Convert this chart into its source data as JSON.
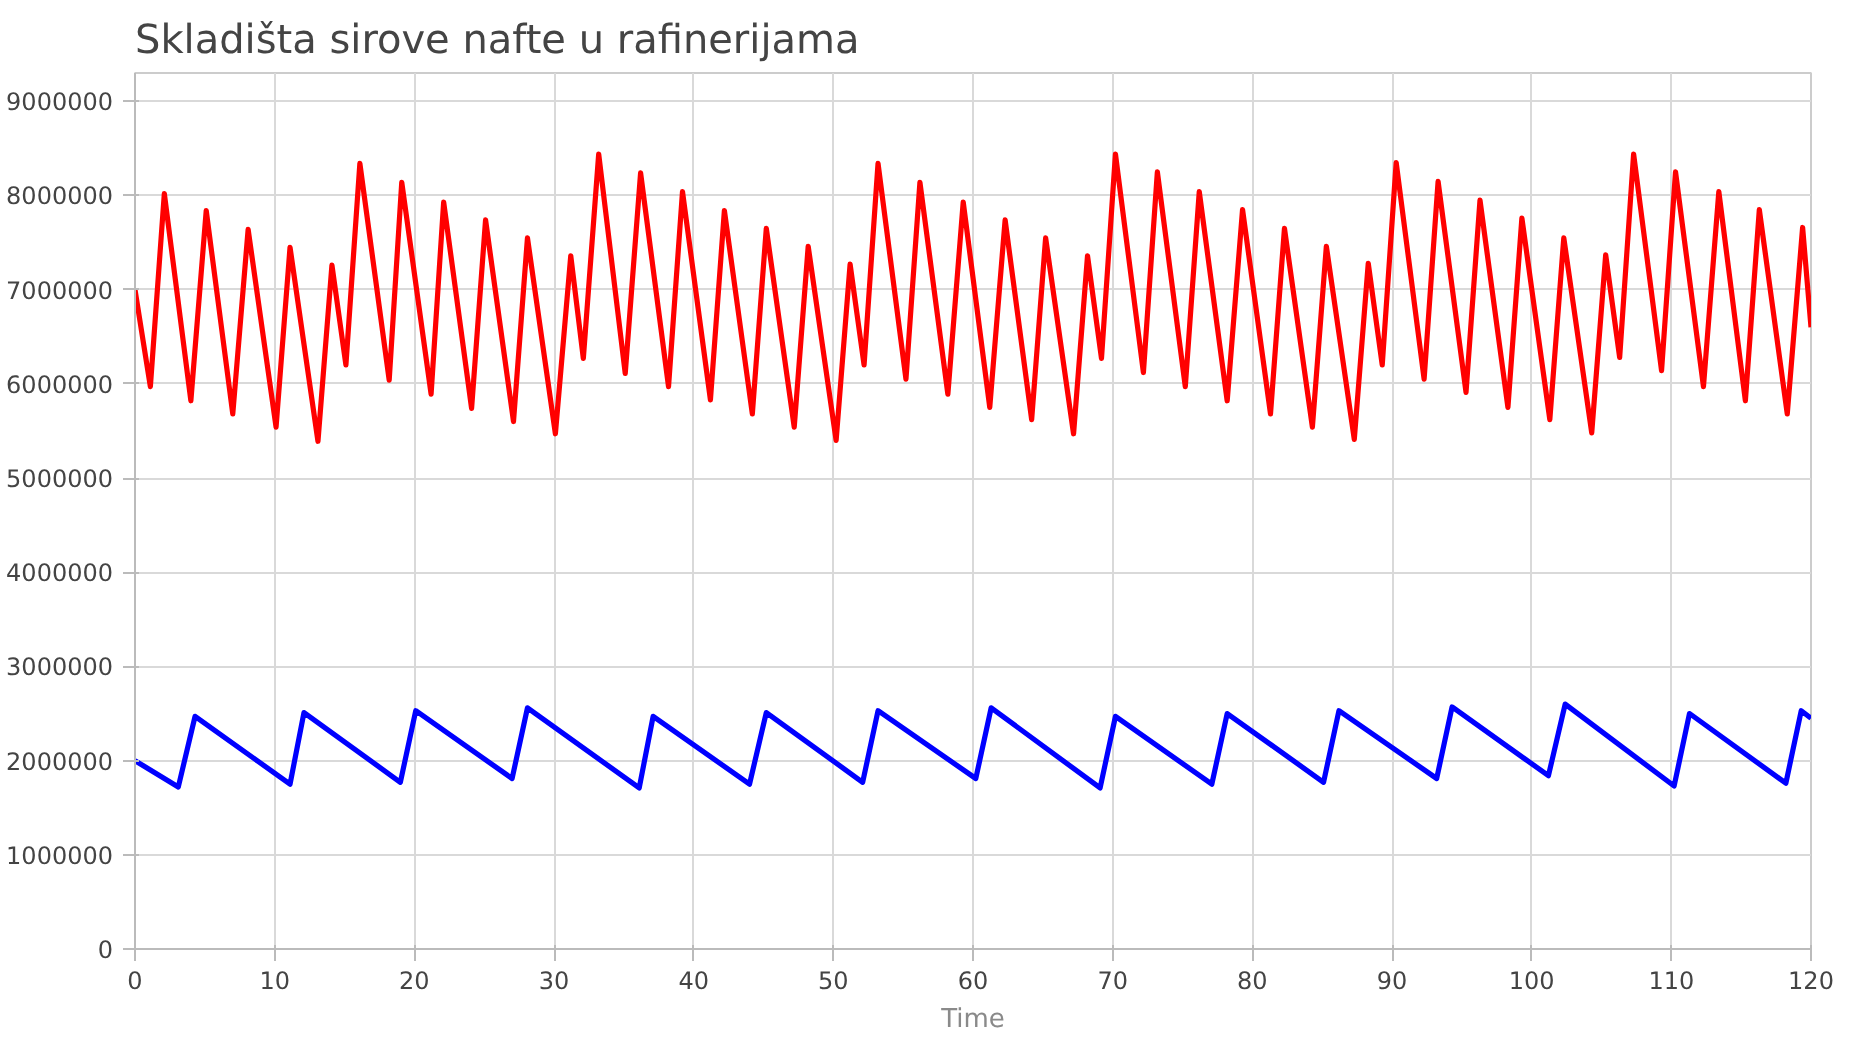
{
  "chart_data": {
    "type": "line",
    "title": "Skladišta sirove nafte u rafinerijama",
    "xlabel": "Time",
    "xlim": [
      0,
      120
    ],
    "ylim": [
      0,
      9300000
    ],
    "xticks": [
      0,
      10,
      20,
      30,
      40,
      50,
      60,
      70,
      80,
      90,
      100,
      110,
      120
    ],
    "yticks": [
      0,
      1000000,
      2000000,
      3000000,
      4000000,
      5000000,
      6000000,
      7000000,
      8000000,
      9000000
    ],
    "grid": true,
    "marker": "none",
    "line_style": "solid",
    "series": [
      {
        "color": "#ff0000",
        "x": [
          0,
          1.1,
          2.1,
          4.0,
          5.1,
          7.0,
          8.1,
          10.1,
          11.1,
          13.1,
          14.1,
          15.1,
          16.1,
          18.2,
          19.1,
          21.2,
          22.1,
          24.1,
          25.1,
          27.1,
          28.1,
          30.1,
          31.2,
          32.1,
          33.2,
          35.1,
          36.2,
          38.2,
          39.2,
          41.2,
          42.2,
          44.2,
          45.2,
          47.2,
          48.2,
          50.2,
          51.2,
          52.2,
          53.2,
          55.2,
          56.2,
          58.2,
          59.3,
          61.2,
          62.3,
          64.2,
          65.2,
          67.2,
          68.2,
          69.2,
          70.2,
          72.2,
          73.2,
          75.2,
          76.2,
          78.2,
          79.3,
          81.3,
          82.3,
          84.3,
          85.3,
          87.3,
          88.3,
          89.3,
          90.3,
          92.3,
          93.3,
          95.3,
          96.3,
          98.3,
          99.3,
          101.3,
          102.3,
          104.3,
          105.3,
          106.3,
          107.3,
          109.3,
          110.3,
          112.3,
          113.4,
          115.3,
          116.3,
          118.3,
          119.4,
          120
        ],
        "values": [
          7000000,
          5970000,
          8020000,
          5820000,
          7840000,
          5680000,
          7640000,
          5540000,
          7450000,
          5390000,
          7260000,
          6200000,
          8340000,
          6040000,
          8140000,
          5890000,
          7930000,
          5740000,
          7740000,
          5600000,
          7550000,
          5470000,
          7360000,
          6270000,
          8440000,
          6110000,
          8240000,
          5970000,
          8040000,
          5830000,
          7840000,
          5680000,
          7650000,
          5540000,
          7460000,
          5400000,
          7270000,
          6200000,
          8340000,
          6050000,
          8140000,
          5890000,
          7930000,
          5750000,
          7740000,
          5620000,
          7550000,
          5470000,
          7360000,
          6270000,
          8440000,
          6120000,
          8250000,
          5970000,
          8040000,
          5820000,
          7850000,
          5680000,
          7650000,
          5540000,
          7460000,
          5410000,
          7280000,
          6200000,
          8350000,
          6050000,
          8150000,
          5910000,
          7950000,
          5750000,
          7760000,
          5620000,
          7550000,
          5480000,
          7370000,
          6280000,
          8440000,
          6140000,
          8250000,
          5970000,
          8040000,
          5820000,
          7850000,
          5680000,
          7660000,
          6600000
        ]
      },
      {
        "color": "#0000ff",
        "x": [
          0,
          3.1,
          4.3,
          11.1,
          12.1,
          19.0,
          20.1,
          27.0,
          28.1,
          36.1,
          37.1,
          44.0,
          45.2,
          52.1,
          53.2,
          60.2,
          61.3,
          69.1,
          70.2,
          77.1,
          78.2,
          85.1,
          86.2,
          93.2,
          94.3,
          101.2,
          102.4,
          110.2,
          111.3,
          118.2,
          119.3,
          120
        ],
        "values": [
          2000000,
          1720000,
          2470000,
          1750000,
          2510000,
          1770000,
          2530000,
          1810000,
          2560000,
          1710000,
          2470000,
          1750000,
          2510000,
          1770000,
          2530000,
          1810000,
          2560000,
          1710000,
          2470000,
          1750000,
          2500000,
          1770000,
          2530000,
          1810000,
          2570000,
          1840000,
          2600000,
          1730000,
          2500000,
          1760000,
          2530000,
          2450000
        ]
      }
    ]
  }
}
